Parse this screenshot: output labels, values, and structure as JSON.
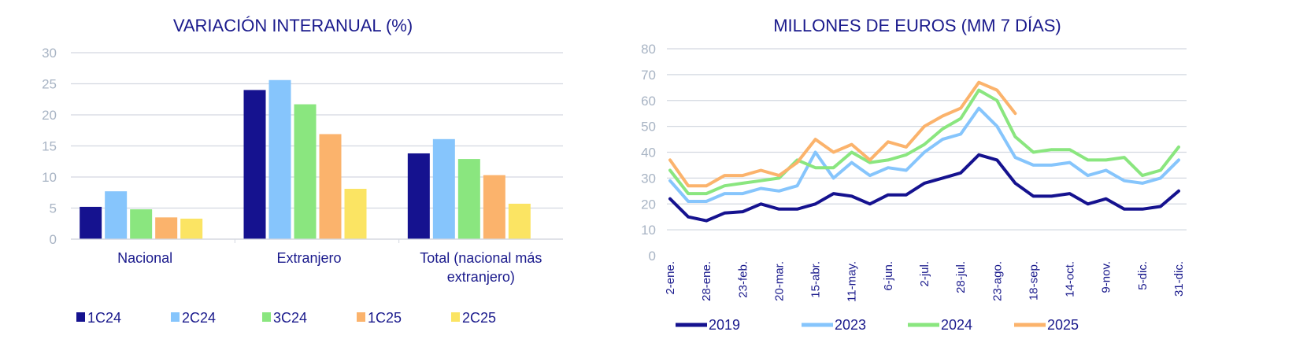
{
  "chart_data": [
    {
      "type": "bar",
      "title": "VARIACIÓN INTERANUAL (%)",
      "xlabel": "",
      "ylabel": "",
      "ylim": [
        0,
        30
      ],
      "yticks": [
        "0",
        "5",
        "10",
        "15",
        "20",
        "25",
        "30"
      ],
      "grid": true,
      "legend_position": "bottom",
      "categories": [
        "Nacional",
        "Extranjero",
        "Total (nacional más extranjero)"
      ],
      "category_lines": [
        [
          "Nacional"
        ],
        [
          "Extranjero"
        ],
        [
          "Total (nacional más",
          "extranjero)"
        ]
      ],
      "series": [
        {
          "name": "1C24",
          "color": "#15128f",
          "values": [
            5.2,
            24.0,
            13.8
          ]
        },
        {
          "name": "2C24",
          "color": "#86c5fc",
          "values": [
            7.7,
            25.6,
            16.1
          ]
        },
        {
          "name": "3C24",
          "color": "#8ae67f",
          "values": [
            4.8,
            21.7,
            12.9
          ]
        },
        {
          "name": "1C25",
          "color": "#fbb36c",
          "values": [
            3.5,
            16.9,
            10.3
          ]
        },
        {
          "name": "2C25",
          "color": "#fbe463",
          "values": [
            3.3,
            8.1,
            5.7
          ]
        }
      ]
    },
    {
      "type": "line",
      "title": "MILLONES DE EUROS (MM 7 DÍAS)",
      "xlabel": "",
      "ylabel": "",
      "ylim": [
        0,
        80
      ],
      "yticks": [
        "0",
        "10",
        "20",
        "30",
        "40",
        "50",
        "60",
        "70",
        "80"
      ],
      "xlim": [
        0,
        364
      ],
      "xtick_labels": [
        "2-ene.",
        "28-ene.",
        "23-feb.",
        "20-mar.",
        "15-abr.",
        "11-may.",
        "6-jun.",
        "2-jul.",
        "28-jul.",
        "23-ago.",
        "18-sep.",
        "14-oct.",
        "9-nov.",
        "5-dic.",
        "31-dic."
      ],
      "grid": true,
      "legend_position": "bottom",
      "x_days": [
        0,
        13,
        26,
        39,
        52,
        65,
        78,
        91,
        104,
        117,
        130,
        143,
        156,
        169,
        182,
        195,
        208,
        221,
        234,
        247,
        260,
        273,
        286,
        299,
        312,
        325,
        338,
        351,
        364
      ],
      "series": [
        {
          "name": "2019",
          "color": "#15128f",
          "values": [
            22,
            15,
            13.5,
            16.5,
            17,
            20,
            18,
            18,
            20,
            24,
            23,
            20,
            23.5,
            23.5,
            28,
            30,
            32,
            39,
            37,
            28,
            23,
            23,
            24,
            20,
            22,
            18,
            18,
            19,
            25
          ]
        },
        {
          "name": "2023",
          "color": "#86c5fc",
          "values": [
            29,
            21,
            21,
            24,
            24,
            26,
            25,
            27,
            40,
            30,
            36,
            31,
            34,
            33,
            40,
            45,
            47,
            57,
            50,
            38,
            35,
            35,
            36,
            31,
            33,
            29,
            28,
            30,
            37
          ]
        },
        {
          "name": "2024",
          "color": "#8ae67f",
          "values": [
            33,
            24,
            24,
            27,
            28,
            29,
            30,
            37,
            34,
            34,
            40,
            36,
            37,
            39,
            43,
            49,
            53,
            64,
            60,
            46,
            40,
            41,
            41,
            37,
            37,
            38,
            31,
            33,
            42
          ]
        },
        {
          "name": "2025",
          "color": "#fbb36c",
          "values": [
            37,
            27,
            27,
            31,
            31,
            33,
            31,
            36,
            45,
            40,
            43,
            37,
            44,
            42,
            50,
            54,
            57,
            67,
            64,
            55,
            null,
            null,
            null,
            null,
            null,
            null,
            null,
            null,
            null
          ]
        }
      ]
    }
  ]
}
